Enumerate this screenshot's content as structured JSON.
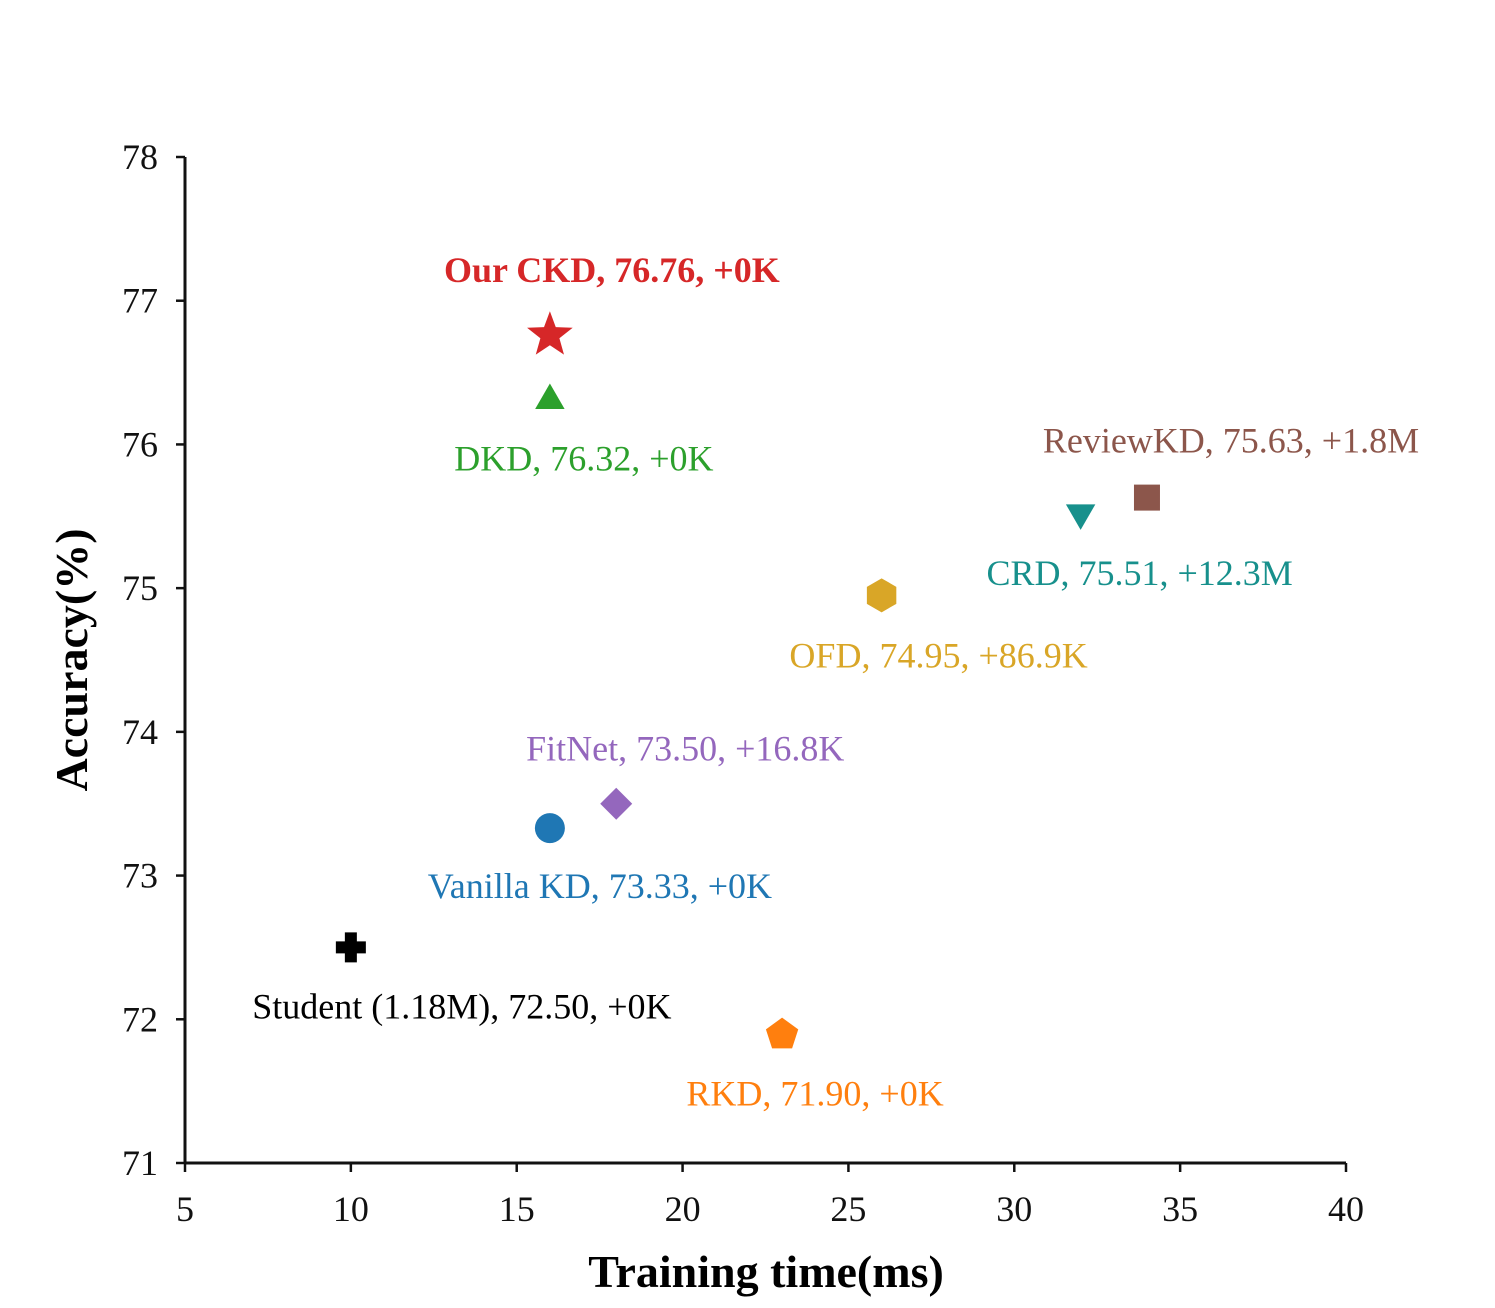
{
  "chart_data": {
    "type": "scatter",
    "title": "",
    "xlabel": "Training time(ms)",
    "ylabel": "Accuracy(%)",
    "xlim": [
      5,
      40
    ],
    "ylim": [
      71,
      78
    ],
    "xticks": [
      5,
      10,
      15,
      20,
      25,
      30,
      35,
      40
    ],
    "yticks": [
      71,
      72,
      73,
      74,
      75,
      76,
      77,
      78
    ],
    "grid": false,
    "points": [
      {
        "name": "Our CKD",
        "x": 16,
        "y": 76.76,
        "label": "Our CKD, 76.76, +0K",
        "marker": "star",
        "color": "#d62728",
        "bold": true,
        "label_anchor": "above"
      },
      {
        "name": "DKD",
        "x": 16,
        "y": 76.32,
        "label": "DKD, 76.32, +0K",
        "marker": "triangle-up",
        "color": "#2ca02c",
        "bold": false,
        "label_anchor": "below"
      },
      {
        "name": "ReviewKD",
        "x": 34,
        "y": 75.63,
        "label": "ReviewKD, 75.63, +1.8M",
        "marker": "square",
        "color": "#8c564b",
        "bold": false,
        "label_anchor": "above"
      },
      {
        "name": "CRD",
        "x": 32,
        "y": 75.51,
        "label": "CRD, 75.51, +12.3M",
        "marker": "triangle-down",
        "color": "#17908c",
        "bold": false,
        "label_anchor": "below"
      },
      {
        "name": "OFD",
        "x": 26,
        "y": 74.95,
        "label": "OFD, 74.95, +86.9K",
        "marker": "hexagon",
        "color": "#d9a627",
        "bold": false,
        "label_anchor": "below"
      },
      {
        "name": "FitNet",
        "x": 18,
        "y": 73.5,
        "label": "FitNet, 73.50, +16.8K",
        "marker": "diamond",
        "color": "#9467bd",
        "bold": false,
        "label_anchor": "above"
      },
      {
        "name": "Vanilla KD",
        "x": 16,
        "y": 73.33,
        "label": "Vanilla KD, 73.33, +0K",
        "marker": "circle",
        "color": "#1f77b4",
        "bold": false,
        "label_anchor": "below"
      },
      {
        "name": "Student (1.18M)",
        "x": 10,
        "y": 72.5,
        "label": "Student (1.18M), 72.50, +0K",
        "marker": "plus",
        "color": "#000000",
        "bold": false,
        "label_anchor": "below"
      },
      {
        "name": "RKD",
        "x": 23,
        "y": 71.9,
        "label": "RKD, 71.90, +0K",
        "marker": "pentagon",
        "color": "#ff7f0e",
        "bold": false,
        "label_anchor": "below"
      }
    ]
  }
}
